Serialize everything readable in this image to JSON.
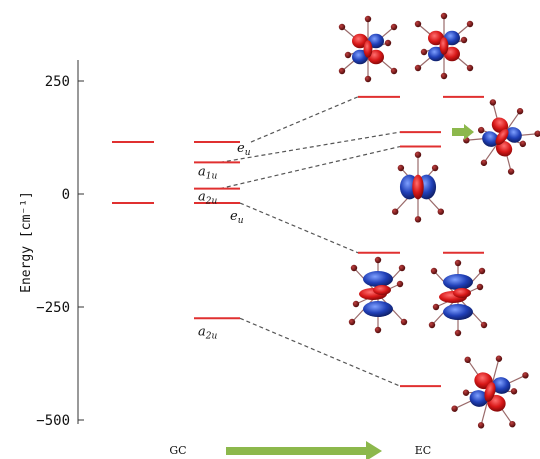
{
  "chart_data": {
    "type": "energy-level-diagram",
    "ylabel": "Energy [cm⁻¹]",
    "ylim": [
      -500,
      300
    ],
    "yticks": [
      "250",
      "0",
      "−250",
      "−500"
    ],
    "ytick_values": [
      250,
      0,
      -250,
      -500
    ],
    "group_labels": [
      "GC",
      "EC"
    ],
    "levels": [
      {
        "column": "GC-1",
        "energy": 115
      },
      {
        "column": "GC-1",
        "energy": -20
      },
      {
        "column": "GC-2",
        "energy": 115,
        "label": "e",
        "sub": "u"
      },
      {
        "column": "GC-2",
        "energy": 70,
        "label": "a",
        "sub": "1u"
      },
      {
        "column": "GC-2",
        "energy": 12,
        "label": "a",
        "sub": "2u"
      },
      {
        "column": "GC-2",
        "energy": -20,
        "label": "e",
        "sub": "u"
      },
      {
        "column": "GC-2",
        "energy": -275,
        "label": "a",
        "sub": "2u"
      },
      {
        "column": "EC-1",
        "energy": 215
      },
      {
        "column": "EC-1",
        "energy": 137
      },
      {
        "column": "EC-1",
        "energy": 105
      },
      {
        "column": "EC-1",
        "energy": -130
      },
      {
        "column": "EC-1",
        "energy": -425
      },
      {
        "column": "EC-2",
        "energy": 215
      },
      {
        "column": "EC-2",
        "energy": -130
      }
    ],
    "correlations": [
      {
        "from_energy": 115,
        "to_energy": 215
      },
      {
        "from_energy": 70,
        "to_energy": 137
      },
      {
        "from_energy": 12,
        "to_energy": 105
      },
      {
        "from_energy": -20,
        "to_energy": -130
      },
      {
        "from_energy": -275,
        "to_energy": -425
      }
    ],
    "colors": {
      "level": "#e03030",
      "dash": "#555555",
      "arrow": "#8cb84c",
      "lobe_red": "#d81818",
      "lobe_blue": "#2040b8"
    }
  }
}
